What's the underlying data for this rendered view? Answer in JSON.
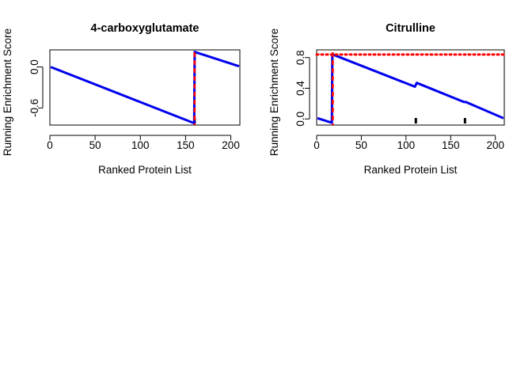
{
  "chart_data": [
    {
      "type": "line",
      "title": "4-carboxyglutamate",
      "xlabel": "Ranked Protein List",
      "ylabel": "Running Enrichment Score",
      "xlim": [
        0,
        210
      ],
      "ylim": [
        -0.85,
        0.25
      ],
      "x_ticks": [
        "0",
        "50",
        "100",
        "150",
        "200"
      ],
      "y_ticks": [
        "-0.6",
        "0.0"
      ],
      "series": [
        {
          "color": "#0000ee",
          "x": [
            1,
            159,
            159.5,
            160,
            209
          ],
          "y": [
            0.0,
            -0.82,
            -0.82,
            0.22,
            0.01
          ]
        }
      ],
      "hits": [
        160
      ],
      "peak_lines": [
        {
          "orientation": "vertical",
          "x": 160,
          "color": "#ff0000",
          "style": "dashed"
        }
      ]
    },
    {
      "type": "line",
      "title": "Citrulline",
      "xlabel": "Ranked Protein List",
      "ylabel": "Running Enrichment Score",
      "xlim": [
        0,
        210
      ],
      "ylim": [
        -0.08,
        0.9
      ],
      "x_ticks": [
        "0",
        "50",
        "100",
        "150",
        "200"
      ],
      "y_ticks": [
        "0.0",
        "0.4",
        "0.8"
      ],
      "series": [
        {
          "color": "#0000ee",
          "x": [
            1,
            17,
            17.5,
            18,
            110,
            112,
            165,
            167,
            209
          ],
          "y": [
            0.01,
            -0.05,
            0.84,
            0.84,
            0.42,
            0.47,
            0.22,
            0.22,
            0.01
          ]
        }
      ],
      "hits": [
        111,
        166
      ],
      "peak_lines": [
        {
          "orientation": "horizontal",
          "y": 0.84,
          "color": "#ff0000",
          "style": "dotted"
        },
        {
          "orientation": "vertical",
          "x": 18,
          "color": "#ff0000",
          "style": "dashed"
        }
      ]
    }
  ]
}
